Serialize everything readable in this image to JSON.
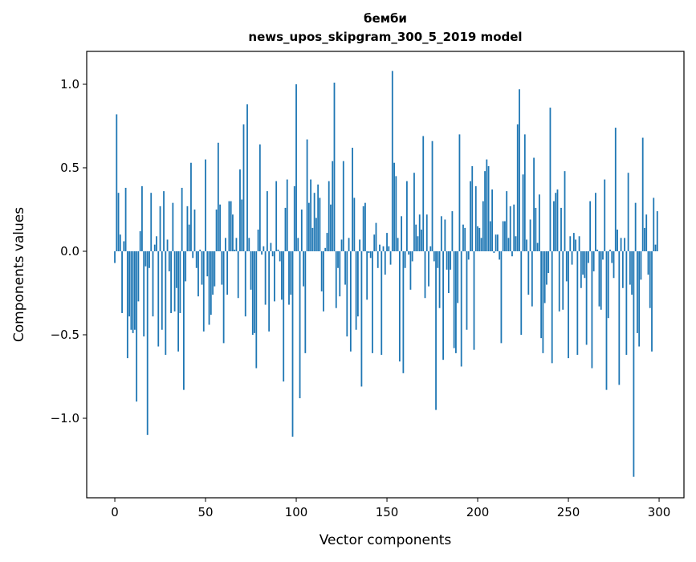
{
  "chart_data": {
    "type": "bar",
    "title": "бемби",
    "subtitle": "news_upos_skipgram_300_5_2019 model",
    "xlabel": "Vector components",
    "ylabel": "Components values",
    "xlim": [
      -15.5,
      313.7
    ],
    "ylim": [
      -1.476,
      1.197
    ],
    "xticks": [
      0,
      50,
      100,
      150,
      200,
      250,
      300
    ],
    "xtick_labels": [
      "0",
      "50",
      "100",
      "150",
      "200",
      "250",
      "300"
    ],
    "yticks": [
      -1.0,
      -0.5,
      0.0,
      0.5,
      1.0
    ],
    "ytick_labels": [
      "−1.0",
      "−0.5",
      "0.0",
      "0.5",
      "1.0"
    ],
    "grid": false,
    "color": "#1f77b4",
    "values": [
      -0.07,
      0.82,
      0.35,
      0.1,
      -0.37,
      0.06,
      0.38,
      -0.64,
      -0.39,
      -0.47,
      -0.49,
      -0.47,
      -0.9,
      -0.3,
      0.12,
      0.39,
      -0.51,
      -0.09,
      -1.1,
      -0.1,
      0.35,
      -0.39,
      0.04,
      0.09,
      -0.57,
      0.27,
      -0.47,
      0.36,
      -0.62,
      0.07,
      -0.12,
      -0.37,
      0.29,
      -0.36,
      -0.22,
      -0.6,
      -0.37,
      0.38,
      -0.83,
      -0.18,
      0.27,
      0.16,
      0.53,
      -0.04,
      0.25,
      -0.1,
      -0.27,
      0.01,
      -0.2,
      -0.48,
      0.55,
      -0.15,
      -0.44,
      -0.38,
      -0.26,
      -0.21,
      0.25,
      0.65,
      0.28,
      -0.2,
      -0.55,
      0.08,
      -0.26,
      0.3,
      0.3,
      0.22,
      0.01,
      0.08,
      -0.28,
      0.49,
      0.31,
      0.76,
      -0.39,
      0.88,
      0.08,
      -0.23,
      -0.5,
      -0.49,
      -0.7,
      0.13,
      0.64,
      -0.02,
      0.03,
      -0.32,
      0.36,
      -0.48,
      0.05,
      -0.03,
      -0.3,
      0.42,
      0.01,
      -0.06,
      -0.29,
      -0.78,
      0.26,
      0.43,
      -0.32,
      -0.26,
      -1.11,
      0.39,
      1.0,
      0.08,
      -0.88,
      0.25,
      -0.21,
      -0.61,
      0.67,
      0.29,
      0.43,
      0.14,
      0.35,
      0.2,
      0.4,
      0.32,
      -0.24,
      -0.36,
      0.02,
      0.11,
      0.42,
      0.28,
      0.54,
      1.01,
      -0.34,
      -0.1,
      -0.27,
      0.07,
      0.54,
      -0.2,
      -0.51,
      0.08,
      -0.6,
      0.62,
      0.32,
      -0.47,
      -0.39,
      0.07,
      -0.81,
      0.27,
      0.29,
      -0.29,
      -0.01,
      -0.04,
      -0.61,
      0.1,
      0.17,
      -0.1,
      0.04,
      -0.62,
      0.03,
      -0.14,
      0.11,
      0.03,
      -0.08,
      1.08,
      0.53,
      0.45,
      0.08,
      -0.66,
      0.21,
      -0.73,
      -0.1,
      0.42,
      -0.02,
      -0.23,
      -0.06,
      0.47,
      0.16,
      0.09,
      0.22,
      0.13,
      0.69,
      -0.28,
      0.22,
      -0.21,
      0.03,
      0.66,
      -0.06,
      -0.95,
      -0.1,
      -0.34,
      0.21,
      -0.65,
      0.19,
      -0.11,
      -0.25,
      -0.11,
      0.24,
      -0.58,
      -0.61,
      -0.31,
      0.7,
      -0.69,
      0.16,
      0.14,
      -0.47,
      -0.05,
      0.42,
      0.51,
      -0.59,
      0.39,
      0.15,
      0.14,
      0.08,
      0.3,
      0.48,
      0.55,
      0.51,
      0.18,
      0.37,
      -0.01,
      0.1,
      0.1,
      -0.05,
      -0.55,
      0.18,
      0.18,
      0.36,
      0.08,
      0.27,
      -0.03,
      0.28,
      0.09,
      0.76,
      0.97,
      -0.5,
      0.46,
      0.7,
      0.07,
      -0.26,
      0.19,
      -0.33,
      0.56,
      0.26,
      0.05,
      0.34,
      -0.52,
      -0.61,
      -0.31,
      -0.2,
      -0.13,
      0.86,
      -0.67,
      0.3,
      0.35,
      0.37,
      -0.36,
      0.26,
      -0.35,
      0.48,
      -0.18,
      -0.64,
      0.09,
      -0.08,
      0.11,
      0.07,
      -0.62,
      0.09,
      -0.22,
      -0.14,
      -0.16,
      -0.56,
      -0.07,
      0.3,
      -0.7,
      -0.12,
      0.35,
      0.01,
      -0.33,
      -0.35,
      -0.05,
      0.43,
      -0.83,
      -0.4,
      0.01,
      -0.07,
      -0.16,
      0.74,
      0.13,
      -0.8,
      0.08,
      -0.22,
      0.08,
      -0.62,
      0.47,
      -0.2,
      -0.26,
      -1.35,
      0.29,
      -0.49,
      -0.57,
      -0.17,
      0.68,
      0.14,
      0.22,
      -0.14,
      -0.34,
      -0.6,
      0.32,
      0.04,
      0.24
    ]
  }
}
